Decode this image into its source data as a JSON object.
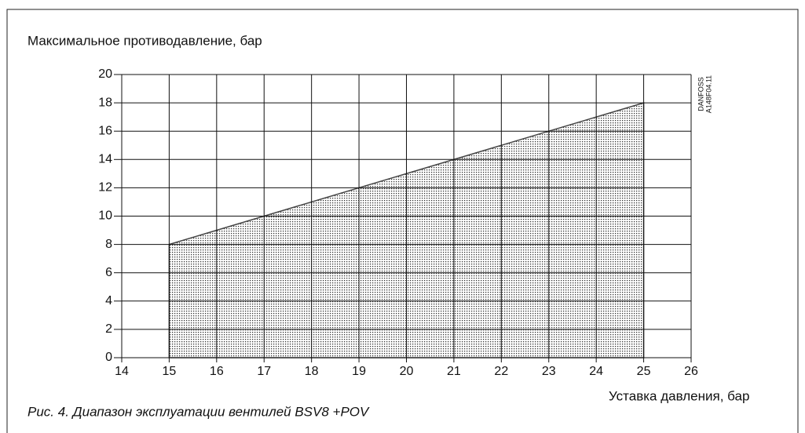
{
  "chart_data": {
    "type": "area",
    "title": "Максимальное противодавление, бар",
    "x_label": "Уставка давления, бар",
    "caption": "Рис. 4. Диапазон эксплуатации вентилей BSV8 +POV",
    "annotations": [
      "DANFOSS",
      "A148F04.11"
    ],
    "x": [
      15,
      25
    ],
    "values": [
      8,
      18
    ],
    "color": "#444444",
    "xlim": [
      14,
      26
    ],
    "ylim": [
      0,
      20
    ],
    "xticks": [
      14,
      15,
      16,
      17,
      18,
      19,
      20,
      21,
      22,
      23,
      24,
      25,
      26
    ],
    "yticks": [
      0,
      2,
      4,
      6,
      8,
      10,
      12,
      14,
      16,
      18,
      20
    ],
    "grid": true
  }
}
